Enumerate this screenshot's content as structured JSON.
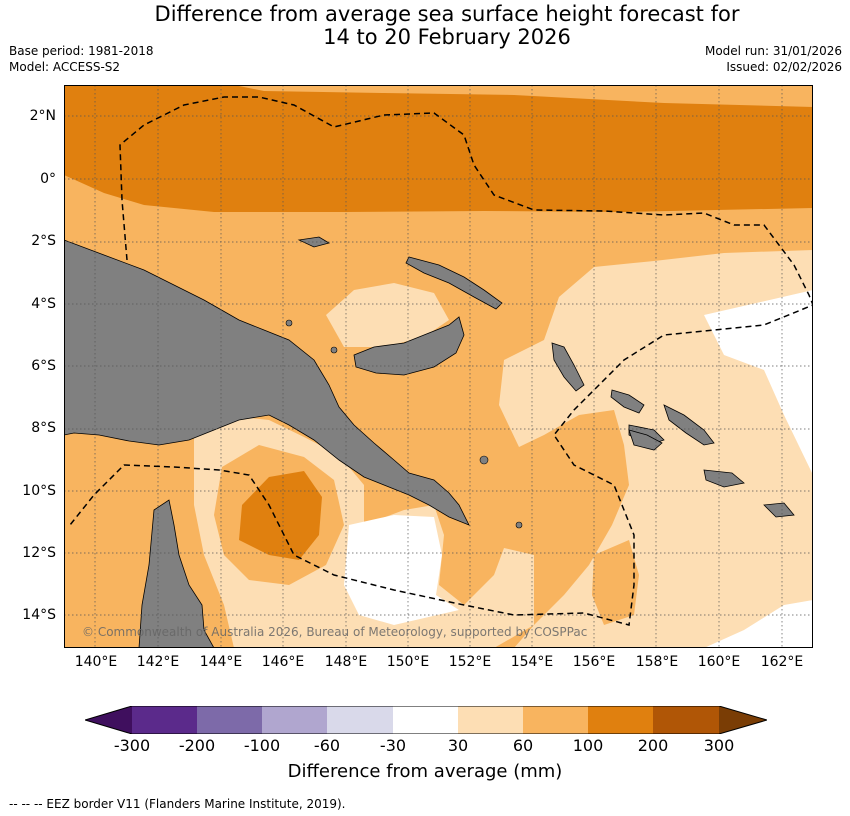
{
  "title_line1": "Difference from average sea surface height forecast for",
  "title_line2": "14 to 20 February 2026",
  "base_period": "Base period: 1981-2018",
  "model": "Model: ACCESS-S2",
  "model_run": "Model run: 31/01/2026",
  "issued": "Issued: 02/02/2026",
  "lat_labels": [
    "2°N",
    "0°",
    "2°S",
    "4°S",
    "6°S",
    "8°S",
    "10°S",
    "12°S",
    "14°S"
  ],
  "lon_labels": [
    "140°E",
    "142°E",
    "144°E",
    "146°E",
    "148°E",
    "150°E",
    "152°E",
    "154°E",
    "156°E",
    "158°E",
    "160°E",
    "162°E"
  ],
  "copyright": "© Commonwealth of Australia 2026, Bureau of Meteorology, supported by COSPPac",
  "colorbar": {
    "title": "Difference from average (mm)",
    "ticks": [
      "-300",
      "-200",
      "-100",
      "-60",
      "-30",
      "30",
      "60",
      "100",
      "200",
      "300"
    ],
    "colors": [
      "#3f0f5e",
      "#5b2a8b",
      "#7d6aa9",
      "#b0a6cf",
      "#d9d9ea",
      "#ffffff",
      "#fddeb4",
      "#f8b45f",
      "#e0800f",
      "#b05606",
      "#7a3d05"
    ]
  },
  "map_colors": {
    "land": "#808080",
    "c30_60": "#fddeb4",
    "c60_100": "#f8b45f",
    "c100_200": "#e0800f"
  },
  "footer": "--  --  -- EEZ border V11 (Flanders Marine Institute, 2019)."
}
